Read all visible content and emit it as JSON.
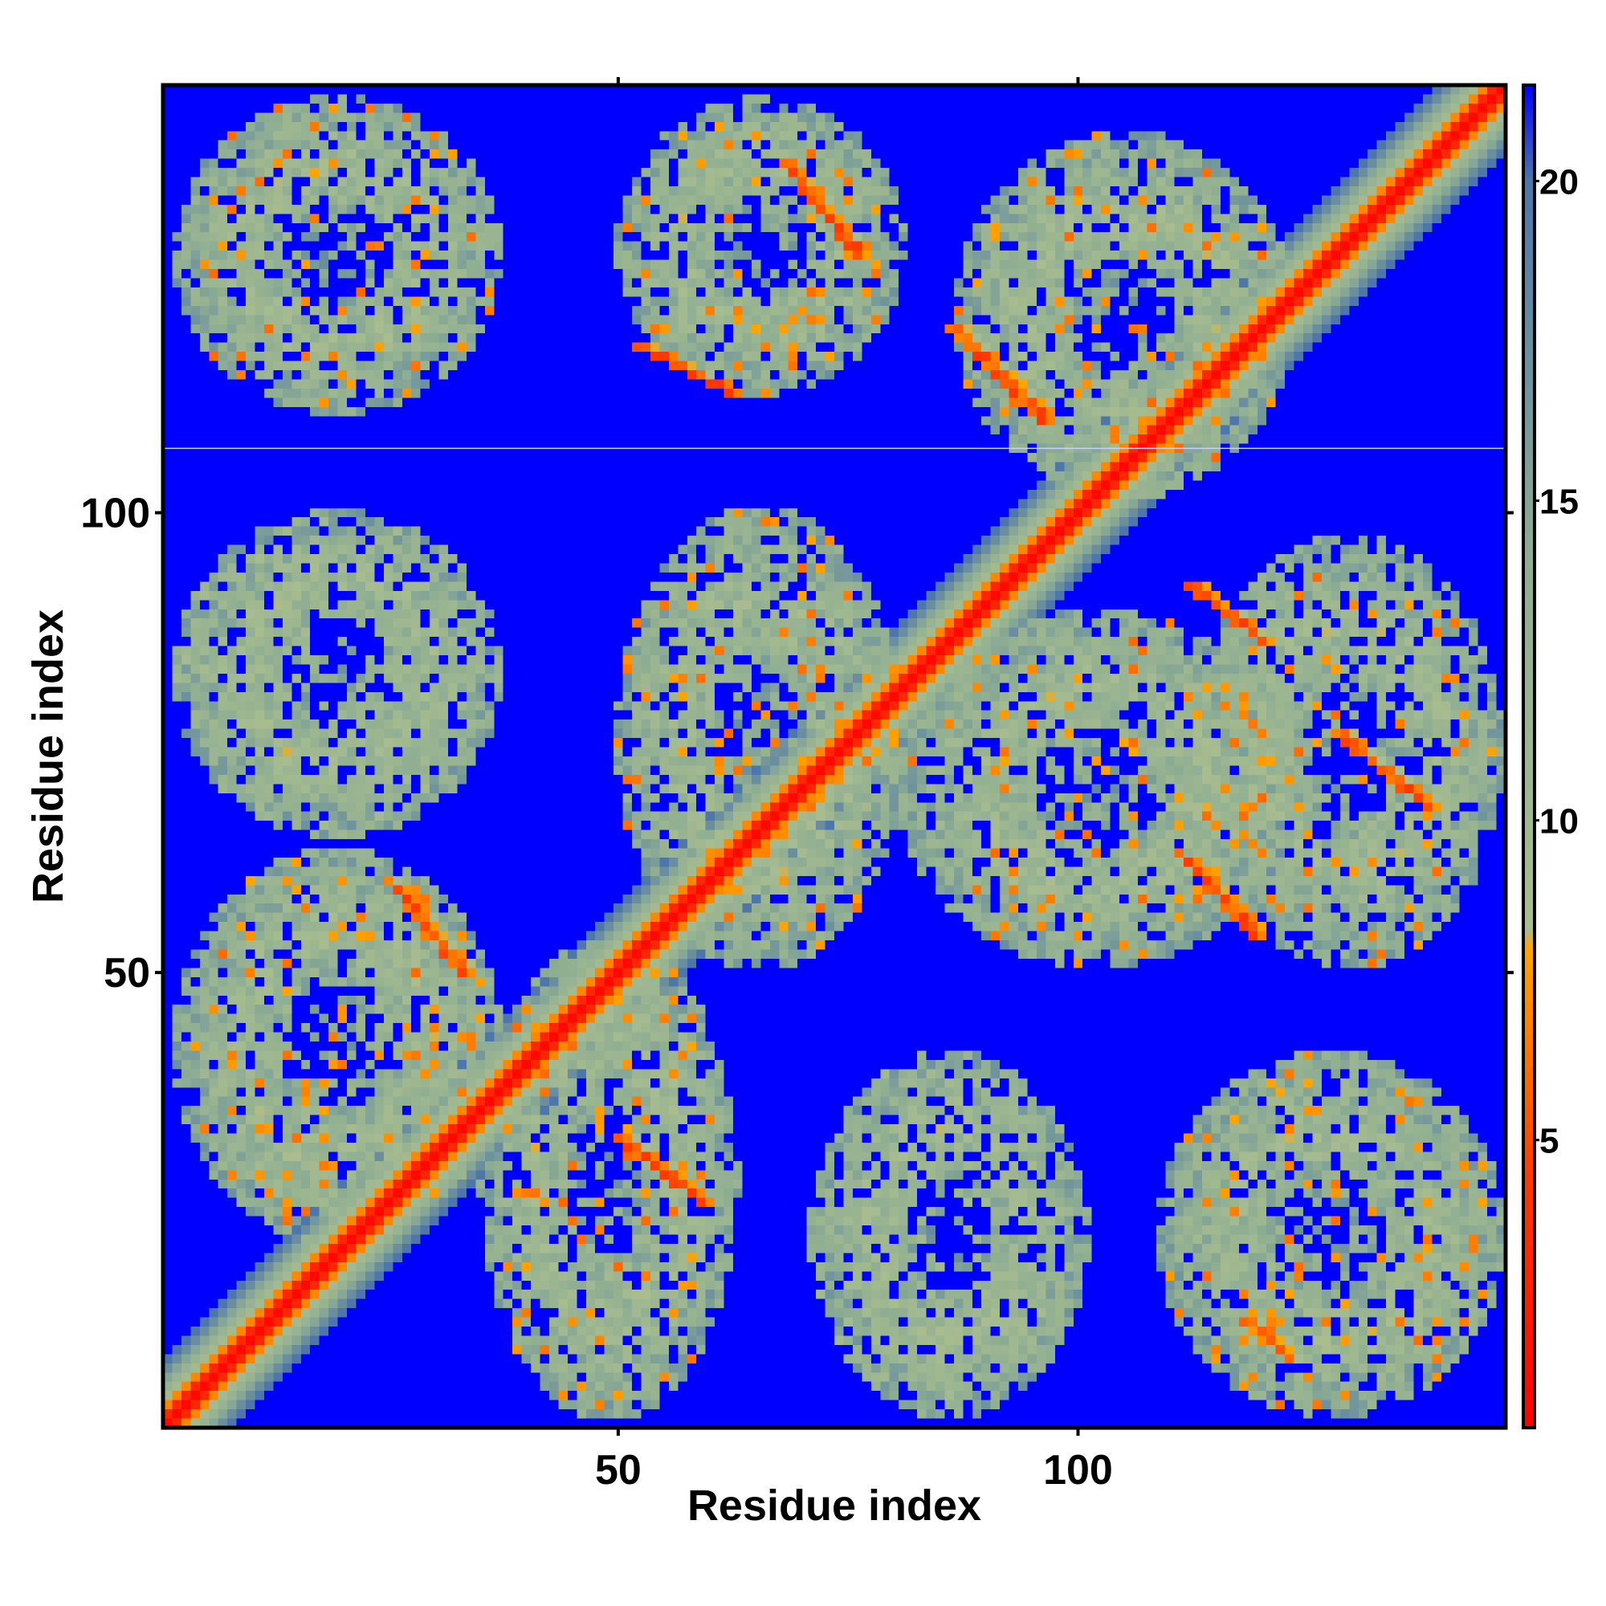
{
  "chart_data": {
    "type": "heatmap",
    "title": "",
    "xlabel": "Residue index",
    "ylabel": "Residue index",
    "n_residues": 146,
    "xlim": [
      1,
      146
    ],
    "ylim": [
      1,
      146
    ],
    "x_ticks": [
      50,
      100
    ],
    "y_ticks": [
      50,
      100
    ],
    "colorbar": {
      "range": [
        0.5,
        21.5
      ],
      "ticks": [
        5,
        10,
        15,
        20
      ],
      "threshold_saturate": 21,
      "stops": [
        {
          "value": 0.5,
          "color": "#ff0000"
        },
        {
          "value": 4.5,
          "color": "#ff3c00"
        },
        {
          "value": 8.0,
          "color": "#ffa500"
        },
        {
          "value": 8.3,
          "color": "#a9bd8f"
        },
        {
          "value": 14.0,
          "color": "#8fae92"
        },
        {
          "value": 20.0,
          "color": "#4d76aa"
        },
        {
          "value": 21.5,
          "color": "#0000ff"
        }
      ]
    },
    "diagonal_band_width": 2.0,
    "contact_regions": [
      {
        "x": [
          3,
          36
        ],
        "y": [
          112,
          144
        ],
        "min_distance": 6
      },
      {
        "x": [
          51,
          80
        ],
        "y": [
          114,
          144
        ],
        "min_distance": 6
      },
      {
        "x": [
          88,
          122
        ],
        "y": [
          103,
          140
        ],
        "min_distance": 6
      },
      {
        "x": [
          3,
          36
        ],
        "y": [
          66,
          99
        ],
        "min_distance": 9
      },
      {
        "x": [
          51,
          80
        ],
        "y": [
          52,
          99
        ],
        "min_distance": 6
      },
      {
        "x": [
          82,
          122
        ],
        "y": [
          52,
          88
        ],
        "min_distance": 6
      },
      {
        "x": [
          114,
          145
        ],
        "y": [
          52,
          96
        ],
        "min_distance": 6
      },
      {
        "x": [
          3,
          36
        ],
        "y": [
          22,
          62
        ],
        "min_distance": 6
      },
      {
        "x": [
          36,
          62
        ],
        "y": [
          3,
          52
        ],
        "min_distance": 6
      },
      {
        "x": [
          72,
          100
        ],
        "y": [
          3,
          40
        ],
        "min_distance": 9
      },
      {
        "x": [
          110,
          145
        ],
        "y": [
          3,
          40
        ],
        "min_distance": 6
      }
    ],
    "contact_strands": [
      {
        "from": [
          52,
          118
        ],
        "to": [
          62,
          113
        ],
        "distance": 4
      },
      {
        "from": [
          68,
          138
        ],
        "to": [
          76,
          128
        ],
        "distance": 4
      },
      {
        "from": [
          86,
          120
        ],
        "to": [
          96,
          110
        ],
        "distance": 4
      },
      {
        "from": [
          25,
          60
        ],
        "to": [
          33,
          50
        ],
        "distance": 4
      },
      {
        "from": [
          50,
          32
        ],
        "to": [
          59,
          25
        ],
        "distance": 4
      },
      {
        "from": [
          112,
          92
        ],
        "to": [
          120,
          86
        ],
        "distance": 4
      },
      {
        "from": [
          112,
          62
        ],
        "to": [
          119,
          54
        ],
        "distance": 4
      },
      {
        "from": [
          128,
          76
        ],
        "to": [
          138,
          68
        ],
        "distance": 4
      },
      {
        "from": [
          118,
          12
        ],
        "to": [
          123,
          8
        ],
        "distance": 5
      }
    ],
    "line_artifact_y": 106.5
  }
}
